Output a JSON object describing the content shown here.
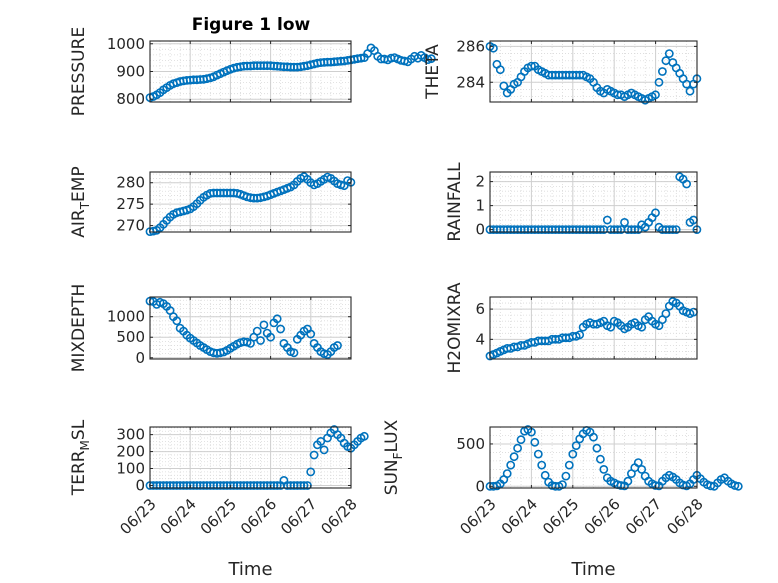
{
  "figure": {
    "title": "Figure 1 low"
  },
  "colors": {
    "marker": "#0072BD",
    "axis": "#262626",
    "grid": "#cfcfcf"
  },
  "chart_data": [
    {
      "id": "pressure",
      "type": "scatter",
      "title": "Figure 1 low",
      "ylabel": "PRESSURE",
      "ylabel_sub": "",
      "xlabel": "",
      "xlim": [
        "06/23",
        "06/28"
      ],
      "ylim": [
        790,
        1010
      ],
      "yticks": [
        800,
        900,
        1000
      ],
      "show_xticks": false,
      "x_start": "06/23",
      "x_step_days": 0.0833,
      "values": [
        806,
        810,
        816,
        824,
        834,
        842,
        850,
        856,
        860,
        864,
        866,
        868,
        869,
        870,
        870,
        871,
        872,
        874,
        877,
        881,
        887,
        892,
        898,
        903,
        908,
        912,
        915,
        917,
        919,
        920,
        920,
        921,
        921,
        921,
        921,
        921,
        921,
        920,
        919,
        918,
        917,
        917,
        916,
        916,
        916,
        917,
        919,
        921,
        924,
        927,
        930,
        932,
        933,
        934,
        934,
        935,
        936,
        937,
        938,
        940,
        942,
        944,
        946,
        948,
        950,
        965,
        985,
        975,
        955,
        945,
        945,
        942,
        948,
        950,
        945,
        940,
        938,
        935,
        945,
        955,
        948,
        958,
        950,
        943,
        946
      ]
    },
    {
      "id": "theta",
      "type": "scatter",
      "ylabel": "THETA",
      "ylabel_sub": "",
      "xlabel": "",
      "xlim": [
        "06/23",
        "06/28"
      ],
      "ylim": [
        282.9,
        286.3
      ],
      "yticks": [
        284,
        286
      ],
      "show_xticks": false,
      "x_start": "06/23",
      "x_step_days": 0.0833,
      "values": [
        286.0,
        285.9,
        285.0,
        284.7,
        283.8,
        283.4,
        283.6,
        283.9,
        284.0,
        284.3,
        284.6,
        284.8,
        284.9,
        284.9,
        284.7,
        284.6,
        284.5,
        284.4,
        284.4,
        284.4,
        284.4,
        284.4,
        284.4,
        284.4,
        284.4,
        284.4,
        284.4,
        284.4,
        284.3,
        284.2,
        284.0,
        283.7,
        283.5,
        283.4,
        283.6,
        283.5,
        283.4,
        283.3,
        283.3,
        283.2,
        283.3,
        283.4,
        283.3,
        283.2,
        283.1,
        283.0,
        283.1,
        283.2,
        283.3,
        284.0,
        284.6,
        285.2,
        285.6,
        285.1,
        284.8,
        284.5,
        284.2,
        283.9,
        283.5,
        283.9,
        284.2
      ]
    },
    {
      "id": "air_temp",
      "type": "scatter",
      "ylabel": "AIR",
      "ylabel_sub": "T",
      "ylabel_suffix": "EMP",
      "xlabel": "",
      "xlim": [
        "06/23",
        "06/28"
      ],
      "ylim": [
        268.5,
        282.5
      ],
      "yticks": [
        270,
        275,
        280
      ],
      "show_xticks": false,
      "x_start": "06/23",
      "x_step_days": 0.0833,
      "values": [
        268.6,
        268.7,
        268.9,
        269.5,
        270.3,
        271.2,
        272.0,
        272.6,
        273.0,
        273.2,
        273.4,
        273.6,
        273.9,
        274.4,
        275.1,
        275.9,
        276.6,
        277.1,
        277.5,
        277.6,
        277.6,
        277.6,
        277.6,
        277.6,
        277.6,
        277.6,
        277.5,
        277.3,
        277.0,
        276.7,
        276.5,
        276.4,
        276.4,
        276.5,
        276.7,
        276.9,
        277.2,
        277.5,
        277.8,
        278.1,
        278.4,
        278.7,
        279.0,
        279.5,
        280.3,
        281.0,
        281.4,
        280.8,
        280.0,
        279.5,
        279.8,
        280.3,
        280.8,
        281.3,
        281.0,
        280.4,
        279.8,
        279.5,
        279.3,
        280.5,
        280.1
      ]
    },
    {
      "id": "rainfall",
      "type": "scatter",
      "ylabel": "RAINFALL",
      "ylabel_sub": "",
      "xlabel": "",
      "xlim": [
        "06/23",
        "06/28"
      ],
      "ylim": [
        -0.1,
        2.4
      ],
      "yticks": [
        0,
        1,
        2
      ],
      "show_xticks": false,
      "x_start": "06/23",
      "x_step_days": 0.0833,
      "values": [
        0,
        0,
        0,
        0,
        0,
        0,
        0,
        0,
        0,
        0,
        0,
        0,
        0,
        0,
        0,
        0,
        0,
        0,
        0,
        0,
        0,
        0,
        0,
        0,
        0,
        0,
        0,
        0,
        0,
        0,
        0,
        0,
        0,
        0,
        0.4,
        0,
        0,
        0,
        0,
        0.3,
        0,
        0,
        0,
        0,
        0.2,
        0.1,
        0.3,
        0.5,
        0.7,
        0.1,
        0,
        0,
        0,
        0,
        0,
        2.2,
        2.1,
        1.9,
        0.3,
        0.4,
        0
      ]
    },
    {
      "id": "mixdepth",
      "type": "scatter",
      "ylabel": "MIXDEPTH",
      "ylabel_sub": "",
      "xlabel": "",
      "xlim": [
        "06/23",
        "06/28"
      ],
      "ylim": [
        -30,
        1480
      ],
      "yticks": [
        0,
        500,
        1000
      ],
      "show_xticks": false,
      "x_start": "06/23",
      "x_step_days": 0.0833,
      "values": [
        1380,
        1370,
        1300,
        1350,
        1320,
        1250,
        1150,
        1000,
        900,
        720,
        650,
        550,
        480,
        420,
        360,
        300,
        250,
        200,
        150,
        120,
        110,
        120,
        140,
        180,
        230,
        280,
        330,
        370,
        390,
        380,
        350,
        500,
        650,
        420,
        800,
        600,
        500,
        850,
        950,
        700,
        350,
        250,
        150,
        120,
        450,
        550,
        650,
        700,
        580,
        350,
        250,
        150,
        100,
        80,
        150,
        250,
        300
      ]
    },
    {
      "id": "h2omixra",
      "type": "scatter",
      "ylabel": "H2OMIXRA",
      "ylabel_sub": "",
      "xlabel": "",
      "xlim": [
        "06/23",
        "06/28"
      ],
      "ylim": [
        2.7,
        6.8
      ],
      "yticks": [
        4,
        6
      ],
      "show_xticks": false,
      "x_start": "06/23",
      "x_step_days": 0.0833,
      "values": [
        2.9,
        3.0,
        3.1,
        3.2,
        3.3,
        3.4,
        3.4,
        3.5,
        3.5,
        3.6,
        3.6,
        3.7,
        3.8,
        3.8,
        3.9,
        3.9,
        3.9,
        3.9,
        4.0,
        4.0,
        4.0,
        4.1,
        4.1,
        4.1,
        4.2,
        4.2,
        4.3,
        4.8,
        5.0,
        5.1,
        5.0,
        5.0,
        5.1,
        5.2,
        4.9,
        4.8,
        5.2,
        5.1,
        4.9,
        4.7,
        4.8,
        5.0,
        5.1,
        4.9,
        4.8,
        5.3,
        5.5,
        5.2,
        5.0,
        4.9,
        5.3,
        5.7,
        6.2,
        6.5,
        6.4,
        6.2,
        5.9,
        5.8,
        5.7,
        5.8
      ]
    },
    {
      "id": "terr_msl",
      "type": "scatter",
      "ylabel": "TERR",
      "ylabel_sub": "M",
      "ylabel_suffix": "SL",
      "xlabel": "Time",
      "xlim": [
        "06/23",
        "06/28"
      ],
      "ylim": [
        -15,
        345
      ],
      "yticks": [
        0,
        100,
        200,
        300
      ],
      "xticks": [
        "06/23",
        "06/24",
        "06/25",
        "06/26",
        "06/27",
        "06/28"
      ],
      "show_xticks": true,
      "x_start": "06/23",
      "x_step_days": 0.0833,
      "values": [
        0,
        0,
        0,
        0,
        0,
        0,
        0,
        0,
        0,
        0,
        0,
        0,
        0,
        0,
        0,
        0,
        0,
        0,
        0,
        0,
        0,
        0,
        0,
        0,
        0,
        0,
        0,
        0,
        0,
        0,
        0,
        0,
        0,
        0,
        0,
        0,
        0,
        0,
        0,
        0,
        30,
        0,
        0,
        0,
        0,
        0,
        0,
        0,
        80,
        180,
        240,
        260,
        210,
        280,
        310,
        330,
        300,
        280,
        250,
        230,
        220,
        240,
        260,
        280,
        290
      ]
    },
    {
      "id": "sun_flux",
      "type": "scatter",
      "ylabel": "SUN",
      "ylabel_sub": "F",
      "ylabel_suffix": "LUX",
      "xlabel": "Time",
      "xlim": [
        "06/23",
        "06/28"
      ],
      "ylim": [
        -20,
        700
      ],
      "yticks": [
        0,
        500
      ],
      "xticks": [
        "06/23",
        "06/24",
        "06/25",
        "06/26",
        "06/27",
        "06/28"
      ],
      "show_xticks": true,
      "x_start": "06/23",
      "x_step_days": 0.0833,
      "values": [
        0,
        0,
        5,
        30,
        80,
        150,
        250,
        350,
        450,
        550,
        650,
        670,
        640,
        520,
        380,
        250,
        130,
        50,
        10,
        0,
        0,
        20,
        120,
        250,
        380,
        480,
        560,
        620,
        660,
        640,
        580,
        450,
        320,
        200,
        100,
        60,
        40,
        20,
        10,
        5,
        60,
        150,
        220,
        280,
        200,
        120,
        60,
        30,
        10,
        5,
        60,
        100,
        130,
        110,
        80,
        40,
        15,
        5,
        30,
        80,
        130,
        90,
        50,
        20,
        5,
        0,
        40,
        80,
        100,
        60,
        30,
        10,
        0
      ]
    }
  ]
}
